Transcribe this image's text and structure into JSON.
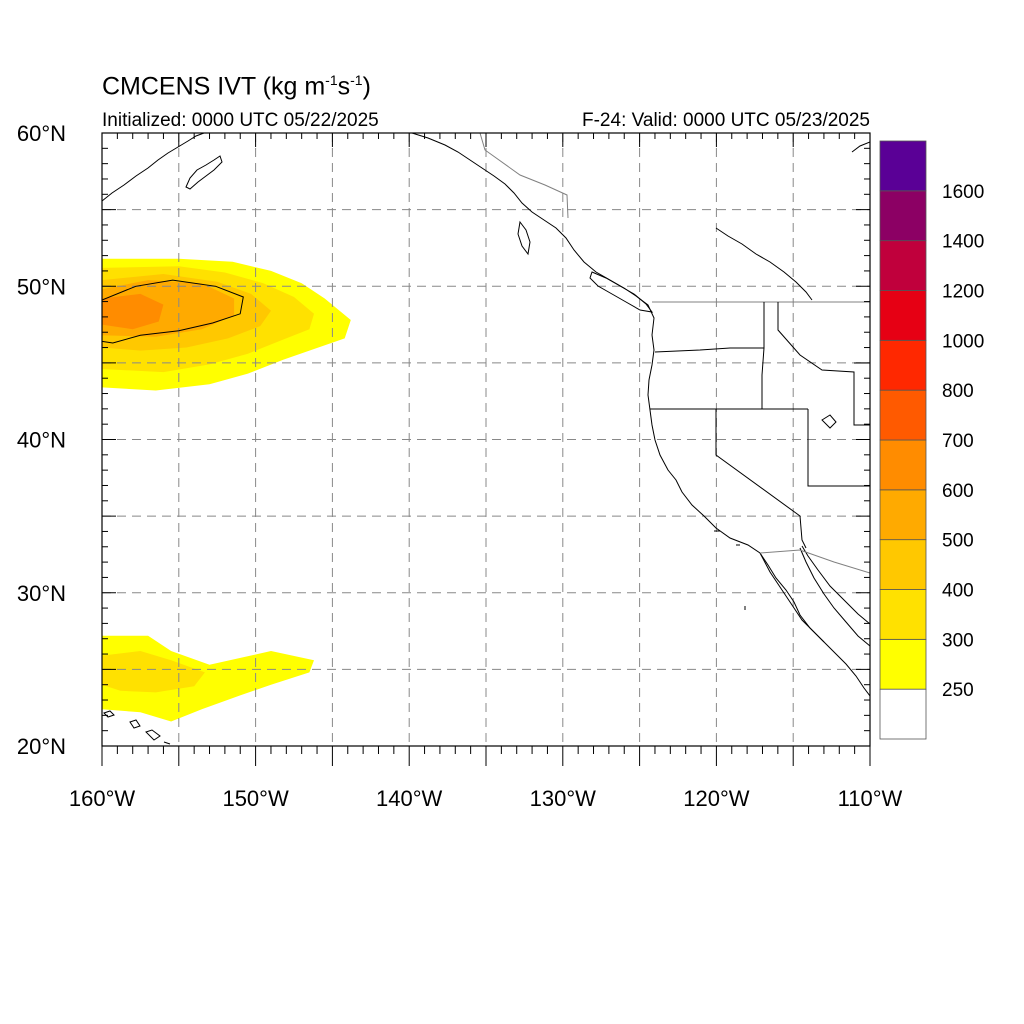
{
  "title": {
    "prefix": "CMCENS IVT (kg m",
    "exp1": "-1",
    "mid": "s",
    "exp2": "-1",
    "suffix": ")"
  },
  "subtitle_left": "Initialized: 0000 UTC 05/22/2025",
  "subtitle_right": "F-24: Valid: 0000 UTC 05/23/2025",
  "map": {
    "lon_range": [
      -160,
      -110
    ],
    "lat_range": [
      20,
      60
    ],
    "lon_ticks": [
      {
        "value": -160,
        "label": "160°W"
      },
      {
        "value": -150,
        "label": "150°W"
      },
      {
        "value": -140,
        "label": "140°W"
      },
      {
        "value": -130,
        "label": "130°W"
      },
      {
        "value": -120,
        "label": "120°W"
      },
      {
        "value": -110,
        "label": "110°W"
      }
    ],
    "lat_ticks": [
      {
        "value": 60,
        "label": "60°N"
      },
      {
        "value": 50,
        "label": "50°N"
      },
      {
        "value": 40,
        "label": "40°N"
      },
      {
        "value": 30,
        "label": "30°N"
      },
      {
        "value": 20,
        "label": "20°N"
      }
    ],
    "grid_spacing_deg": 5,
    "grid": "dashed"
  },
  "colorbar": {
    "levels": [
      250,
      300,
      400,
      500,
      600,
      700,
      800,
      1000,
      1200,
      1400,
      1600
    ],
    "labels": [
      "250",
      "300",
      "400",
      "500",
      "600",
      "700",
      "800",
      "1000",
      "1200",
      "1400",
      "1600"
    ],
    "colors": [
      "#ffffff",
      "#ffff00",
      "#ffe100",
      "#ffc800",
      "#ffaa00",
      "#ff8c00",
      "#ff5a00",
      "#ff2800",
      "#e60014",
      "#c0003c",
      "#8c0064",
      "#5a0096"
    ]
  },
  "ivt_fields": [
    {
      "name": "north-pacific-plume",
      "bands": [
        {
          "min": 250,
          "polygon": [
            [
              -160,
              51.8
            ],
            [
              -155,
              51.8
            ],
            [
              -151.5,
              51.6
            ],
            [
              -149,
              51
            ],
            [
              -147,
              50.2
            ],
            [
              -145.5,
              49.2
            ],
            [
              -143.8,
              47.8
            ],
            [
              -144.2,
              46.6
            ],
            [
              -146.5,
              45.8
            ],
            [
              -148.2,
              45.2
            ],
            [
              -150.5,
              44.3
            ],
            [
              -153,
              43.6
            ],
            [
              -156.5,
              43.2
            ],
            [
              -160,
              43.4
            ]
          ]
        },
        {
          "min": 300,
          "polygon": [
            [
              -160,
              51.2
            ],
            [
              -155,
              51.3
            ],
            [
              -152,
              50.9
            ],
            [
              -149.5,
              50.2
            ],
            [
              -147.5,
              49.3
            ],
            [
              -146.2,
              48.2
            ],
            [
              -146.5,
              47.2
            ],
            [
              -148.5,
              46.4
            ],
            [
              -150.5,
              45.6
            ],
            [
              -153,
              44.9
            ],
            [
              -156,
              44.4
            ],
            [
              -160,
              44.6
            ]
          ]
        },
        {
          "min": 400,
          "polygon": [
            [
              -160,
              50.4
            ],
            [
              -156,
              50.8
            ],
            [
              -152.5,
              50.3
            ],
            [
              -150.3,
              49.5
            ],
            [
              -149,
              48.4
            ],
            [
              -149.7,
              47.4
            ],
            [
              -151.8,
              46.6
            ],
            [
              -154.5,
              46
            ],
            [
              -157.5,
              45.8
            ],
            [
              -160,
              46
            ]
          ]
        },
        {
          "min": 500,
          "polygon": [
            [
              -160,
              49.8
            ],
            [
              -157,
              50.4
            ],
            [
              -153.5,
              50.2
            ],
            [
              -151.4,
              49.2
            ],
            [
              -151.4,
              48.1
            ],
            [
              -153.5,
              47.2
            ],
            [
              -156.5,
              46.7
            ],
            [
              -160,
              46.8
            ]
          ]
        },
        {
          "min": 600,
          "polygon": [
            [
              -160,
              49.2
            ],
            [
              -157.5,
              49.5
            ],
            [
              -156,
              48.8
            ],
            [
              -156.3,
              47.7
            ],
            [
              -158,
              47.2
            ],
            [
              -160,
              47.5
            ]
          ]
        }
      ]
    },
    {
      "name": "subtropical-plume",
      "bands": [
        {
          "min": 250,
          "polygon": [
            [
              -160,
              27.2
            ],
            [
              -157,
              27.2
            ],
            [
              -155.5,
              26.2
            ],
            [
              -153,
              25.3
            ],
            [
              -149,
              26.2
            ],
            [
              -146.2,
              25.6
            ],
            [
              -146.5,
              24.8
            ],
            [
              -149,
              24
            ],
            [
              -151,
              23.3
            ],
            [
              -153.5,
              22.4
            ],
            [
              -155.5,
              21.6
            ],
            [
              -157.5,
              22.2
            ],
            [
              -160,
              22.4
            ]
          ]
        },
        {
          "min": 300,
          "polygon": [
            [
              -160,
              25.9
            ],
            [
              -157.5,
              26.2
            ],
            [
              -155.5,
              25.6
            ],
            [
              -153.3,
              24.8
            ],
            [
              -154,
              23.9
            ],
            [
              -156.5,
              23.5
            ],
            [
              -158.8,
              23.6
            ],
            [
              -160,
              24
            ]
          ]
        }
      ]
    }
  ],
  "contour_600": [
    [
      -160,
      49.1
    ],
    [
      -157.8,
      50
    ],
    [
      -155.4,
      50.4
    ],
    [
      -152.6,
      50
    ],
    [
      -150.8,
      49.3
    ],
    [
      -151,
      48.2
    ],
    [
      -152.8,
      47.6
    ],
    [
      -155,
      47.1
    ],
    [
      -157.5,
      46.8
    ],
    [
      -159.3,
      46.3
    ],
    [
      -160,
      46.4
    ]
  ]
}
